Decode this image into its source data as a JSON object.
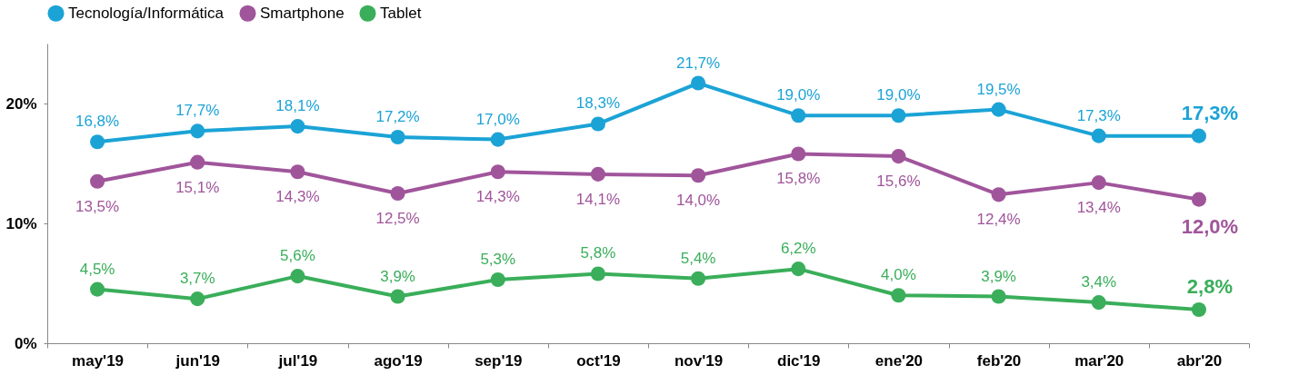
{
  "chart_data": {
    "type": "line",
    "categories": [
      "may'19",
      "jun'19",
      "jul'19",
      "ago'19",
      "sep'19",
      "oct'19",
      "nov'19",
      "dic'19",
      "ene'20",
      "feb'20",
      "mar'20",
      "abr'20"
    ],
    "series": [
      {
        "name": "Tecnología/Informática",
        "color": "#1ba3d6",
        "values": [
          16.8,
          17.7,
          18.1,
          17.2,
          17.0,
          18.3,
          21.7,
          19.0,
          19.0,
          19.5,
          17.3,
          17.3
        ],
        "value_labels": [
          "16,8%",
          "17,7%",
          "18,1%",
          "17,2%",
          "17,0%",
          "18,3%",
          "21,7%",
          "19,0%",
          "19,0%",
          "19,5%",
          "17,3%",
          "17,3%"
        ]
      },
      {
        "name": "Smartphone",
        "color": "#a0559b",
        "values": [
          13.5,
          15.1,
          14.3,
          12.5,
          14.3,
          14.1,
          14.0,
          15.8,
          15.6,
          12.4,
          13.4,
          12.0
        ],
        "value_labels": [
          "13,5%",
          "15,1%",
          "14,3%",
          "12,5%",
          "14,3%",
          "14,1%",
          "14,0%",
          "15,8%",
          "15,6%",
          "12,4%",
          "13,4%",
          "12,0%"
        ]
      },
      {
        "name": "Tablet",
        "color": "#3aae5a",
        "values": [
          4.5,
          3.7,
          5.6,
          3.9,
          5.3,
          5.8,
          5.4,
          6.2,
          4.0,
          3.9,
          3.4,
          2.8
        ],
        "value_labels": [
          "4,5%",
          "3,7%",
          "5,6%",
          "3,9%",
          "5,3%",
          "5,8%",
          "5,4%",
          "6,2%",
          "4,0%",
          "3,9%",
          "3,4%",
          "2,8%"
        ]
      }
    ],
    "ylim": [
      0,
      25
    ],
    "yticks": [
      {
        "value": 0,
        "label": "0%"
      },
      {
        "value": 10,
        "label": "10%"
      },
      {
        "value": 20,
        "label": "20%"
      }
    ],
    "legend": "top",
    "marker": "circle",
    "grid": false,
    "line_style": "solid"
  }
}
